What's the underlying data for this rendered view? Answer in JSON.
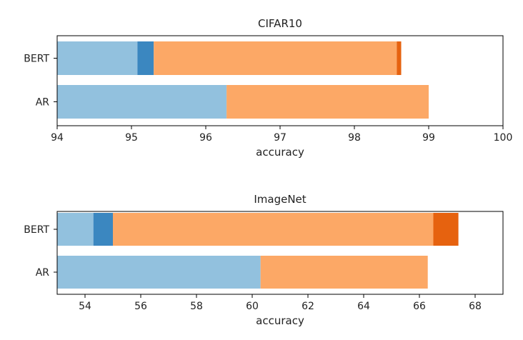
{
  "chart_data": [
    {
      "type": "bar",
      "orientation": "horizontal",
      "stacked": true,
      "title": "CIFAR10",
      "xlabel": "accuracy",
      "ylabel": "",
      "xlim": [
        94,
        100
      ],
      "xticks": [
        94,
        95,
        96,
        97,
        98,
        99,
        100
      ],
      "categories": [
        "BERT",
        "AR"
      ],
      "segments": [
        {
          "category": "BERT",
          "from": 94,
          "to": 95.08,
          "color": "#92c1de"
        },
        {
          "category": "BERT",
          "from": 95.08,
          "to": 95.3,
          "color": "#3b87c0"
        },
        {
          "category": "BERT",
          "from": 95.3,
          "to": 98.57,
          "color": "#fca866"
        },
        {
          "category": "BERT",
          "from": 98.57,
          "to": 98.63,
          "color": "#e6620f"
        },
        {
          "category": "AR",
          "from": 94,
          "to": 96.28,
          "color": "#92c1de"
        },
        {
          "category": "AR",
          "from": 96.28,
          "to": 99.0,
          "color": "#fca866"
        }
      ],
      "grid": false,
      "legend": "none"
    },
    {
      "type": "bar",
      "orientation": "horizontal",
      "stacked": true,
      "title": "ImageNet",
      "xlabel": "accuracy",
      "ylabel": "",
      "xlim": [
        53.0,
        69.0
      ],
      "xticks": [
        54,
        56,
        58,
        60,
        62,
        64,
        66,
        68
      ],
      "categories": [
        "BERT",
        "AR"
      ],
      "segments": [
        {
          "category": "BERT",
          "from": 53.0,
          "to": 54.3,
          "color": "#92c1de"
        },
        {
          "category": "BERT",
          "from": 54.3,
          "to": 55.0,
          "color": "#3b87c0"
        },
        {
          "category": "BERT",
          "from": 55.0,
          "to": 66.5,
          "color": "#fca866"
        },
        {
          "category": "BERT",
          "from": 66.5,
          "to": 67.4,
          "color": "#e6620f"
        },
        {
          "category": "AR",
          "from": 53.0,
          "to": 60.3,
          "color": "#92c1de"
        },
        {
          "category": "AR",
          "from": 60.3,
          "to": 66.3,
          "color": "#fca866"
        }
      ],
      "grid": false,
      "legend": "none"
    }
  ]
}
